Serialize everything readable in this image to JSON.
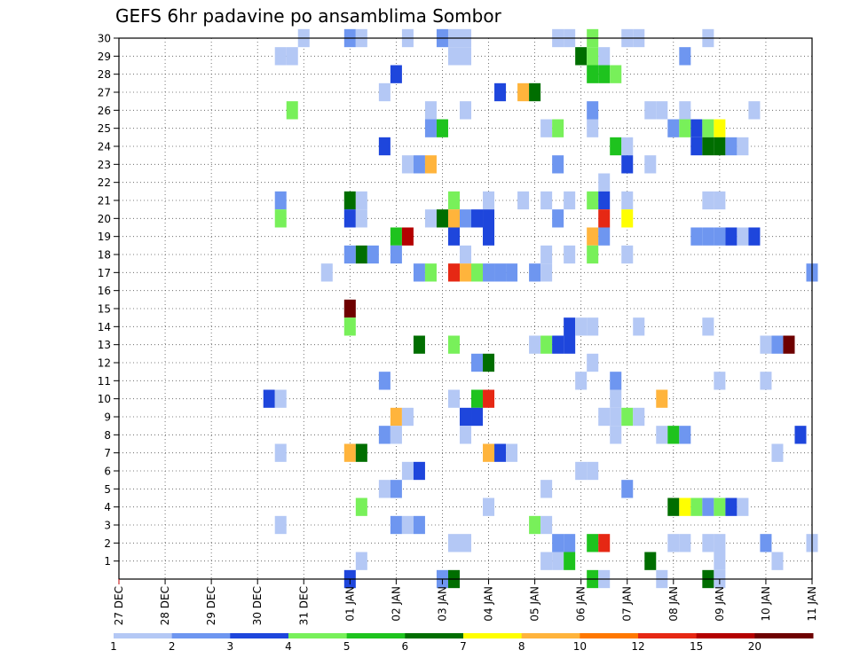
{
  "chart_data": {
    "type": "heatmap",
    "title": "GEFS 6hr padavine po ansamblima Sombor",
    "xlabel": "",
    "ylabel": "",
    "x_unit": "6-hour step from 27 DEC 00Z",
    "xlim": [
      0,
      60
    ],
    "ylim": [
      0,
      30
    ],
    "x_ticks": [
      {
        "x": 0,
        "label": "27 DEC"
      },
      {
        "x": 4,
        "label": "28 DEC"
      },
      {
        "x": 8,
        "label": "29 DEC"
      },
      {
        "x": 12,
        "label": "30 DEC"
      },
      {
        "x": 16,
        "label": "31 DEC"
      },
      {
        "x": 20,
        "label": "01 JAN"
      },
      {
        "x": 24,
        "label": "02 JAN"
      },
      {
        "x": 28,
        "label": "03 JAN"
      },
      {
        "x": 32,
        "label": "04 JAN"
      },
      {
        "x": 36,
        "label": "05 JAN"
      },
      {
        "x": 40,
        "label": "06 JAN"
      },
      {
        "x": 44,
        "label": "07 JAN"
      },
      {
        "x": 48,
        "label": "08 JAN"
      },
      {
        "x": 52,
        "label": "09 JAN"
      },
      {
        "x": 56,
        "label": "10 JAN"
      },
      {
        "x": 60,
        "label": "11 JAN"
      }
    ],
    "y_ticks": [
      "1",
      "2",
      "3",
      "4",
      "5",
      "6",
      "7",
      "8",
      "9",
      "10",
      "11",
      "12",
      "13",
      "14",
      "15",
      "16",
      "17",
      "18",
      "19",
      "20",
      "21",
      "22",
      "23",
      "24",
      "25",
      "26",
      "27",
      "28",
      "29",
      "30"
    ],
    "grid": true,
    "legend": {
      "position": "bottom",
      "bins": [
        {
          "color": "#b4c8f5",
          "label": "1"
        },
        {
          "color": "#6e96f0",
          "label": "2"
        },
        {
          "color": "#1e46dc",
          "label": "3"
        },
        {
          "color": "#78f05a",
          "label": "4"
        },
        {
          "color": "#1ec31e",
          "label": "5"
        },
        {
          "color": "#006e00",
          "label": "6"
        },
        {
          "color": "#ffff00",
          "label": "7"
        },
        {
          "color": "#ffb43c",
          "label": "8"
        },
        {
          "color": "#ff7800",
          "label": "10"
        },
        {
          "color": "#e62814",
          "label": "12"
        },
        {
          "color": "#b40000",
          "label": "15"
        },
        {
          "color": "#6e0000",
          "label": "20"
        }
      ]
    },
    "cells": [
      [
        16,
        30,
        1
      ],
      [
        20,
        30,
        2
      ],
      [
        21,
        30,
        1
      ],
      [
        25,
        30,
        1
      ],
      [
        28,
        30,
        2
      ],
      [
        29,
        30,
        1
      ],
      [
        30,
        30,
        1
      ],
      [
        38,
        30,
        1
      ],
      [
        39,
        30,
        1
      ],
      [
        41,
        30,
        4
      ],
      [
        44,
        30,
        1
      ],
      [
        45,
        30,
        1
      ],
      [
        51,
        30,
        1
      ],
      [
        14,
        29,
        1
      ],
      [
        15,
        29,
        1
      ],
      [
        29,
        29,
        1
      ],
      [
        30,
        29,
        1
      ],
      [
        40,
        29,
        6
      ],
      [
        41,
        29,
        4
      ],
      [
        42,
        29,
        1
      ],
      [
        49,
        29,
        2
      ],
      [
        24,
        28,
        3
      ],
      [
        41,
        28,
        5
      ],
      [
        42,
        28,
        5
      ],
      [
        43,
        28,
        4
      ],
      [
        23,
        27,
        1
      ],
      [
        33,
        27,
        3
      ],
      [
        35,
        27,
        8
      ],
      [
        36,
        27,
        6
      ],
      [
        15,
        26,
        4
      ],
      [
        27,
        26,
        1
      ],
      [
        30,
        26,
        1
      ],
      [
        41,
        26,
        2
      ],
      [
        46,
        26,
        1
      ],
      [
        47,
        26,
        1
      ],
      [
        49,
        26,
        1
      ],
      [
        55,
        26,
        1
      ],
      [
        27,
        25,
        2
      ],
      [
        28,
        25,
        5
      ],
      [
        37,
        25,
        1
      ],
      [
        38,
        25,
        4
      ],
      [
        41,
        25,
        1
      ],
      [
        48,
        25,
        2
      ],
      [
        49,
        25,
        4
      ],
      [
        50,
        25,
        3
      ],
      [
        51,
        25,
        4
      ],
      [
        52,
        25,
        7
      ],
      [
        23,
        24,
        3
      ],
      [
        43,
        24,
        5
      ],
      [
        44,
        24,
        1
      ],
      [
        50,
        24,
        3
      ],
      [
        51,
        24,
        6
      ],
      [
        52,
        24,
        6
      ],
      [
        53,
        24,
        2
      ],
      [
        54,
        24,
        1
      ],
      [
        25,
        23,
        1
      ],
      [
        26,
        23,
        2
      ],
      [
        27,
        23,
        8
      ],
      [
        38,
        23,
        2
      ],
      [
        44,
        23,
        3
      ],
      [
        46,
        23,
        1
      ],
      [
        42,
        22,
        1
      ],
      [
        14,
        21,
        2
      ],
      [
        20,
        21,
        6
      ],
      [
        21,
        21,
        1
      ],
      [
        29,
        21,
        4
      ],
      [
        32,
        21,
        1
      ],
      [
        35,
        21,
        1
      ],
      [
        37,
        21,
        1
      ],
      [
        39,
        21,
        1
      ],
      [
        41,
        21,
        4
      ],
      [
        42,
        21,
        3
      ],
      [
        44,
        21,
        1
      ],
      [
        51,
        21,
        1
      ],
      [
        52,
        21,
        1
      ],
      [
        14,
        20,
        4
      ],
      [
        20,
        20,
        3
      ],
      [
        21,
        20,
        1
      ],
      [
        27,
        20,
        1
      ],
      [
        28,
        20,
        6
      ],
      [
        29,
        20,
        8
      ],
      [
        30,
        20,
        2
      ],
      [
        31,
        20,
        3
      ],
      [
        32,
        20,
        3
      ],
      [
        38,
        20,
        2
      ],
      [
        42,
        20,
        10
      ],
      [
        44,
        20,
        7
      ],
      [
        24,
        19,
        5
      ],
      [
        25,
        19,
        11
      ],
      [
        29,
        19,
        3
      ],
      [
        32,
        19,
        3
      ],
      [
        41,
        19,
        8
      ],
      [
        42,
        19,
        2
      ],
      [
        50,
        19,
        2
      ],
      [
        51,
        19,
        2
      ],
      [
        52,
        19,
        2
      ],
      [
        53,
        19,
        3
      ],
      [
        54,
        19,
        1
      ],
      [
        55,
        19,
        3
      ],
      [
        20,
        18,
        2
      ],
      [
        21,
        18,
        6
      ],
      [
        22,
        18,
        2
      ],
      [
        24,
        18,
        2
      ],
      [
        30,
        18,
        1
      ],
      [
        37,
        18,
        1
      ],
      [
        39,
        18,
        1
      ],
      [
        41,
        18,
        4
      ],
      [
        44,
        18,
        1
      ],
      [
        18,
        17,
        1
      ],
      [
        26,
        17,
        2
      ],
      [
        27,
        17,
        4
      ],
      [
        29,
        17,
        10
      ],
      [
        30,
        17,
        8
      ],
      [
        31,
        17,
        4
      ],
      [
        32,
        17,
        2
      ],
      [
        33,
        17,
        2
      ],
      [
        34,
        17,
        2
      ],
      [
        36,
        17,
        2
      ],
      [
        37,
        17,
        1
      ],
      [
        60,
        17,
        2
      ],
      [
        20,
        15,
        12
      ],
      [
        20,
        14,
        4
      ],
      [
        39,
        14,
        3
      ],
      [
        40,
        14,
        1
      ],
      [
        41,
        14,
        1
      ],
      [
        45,
        14,
        1
      ],
      [
        51,
        14,
        1
      ],
      [
        26,
        13,
        6
      ],
      [
        29,
        13,
        4
      ],
      [
        36,
        13,
        1
      ],
      [
        37,
        13,
        4
      ],
      [
        38,
        13,
        3
      ],
      [
        39,
        13,
        3
      ],
      [
        56,
        13,
        1
      ],
      [
        57,
        13,
        2
      ],
      [
        58,
        13,
        12
      ],
      [
        31,
        12,
        2
      ],
      [
        32,
        12,
        6
      ],
      [
        41,
        12,
        1
      ],
      [
        23,
        11,
        2
      ],
      [
        40,
        11,
        1
      ],
      [
        43,
        11,
        2
      ],
      [
        52,
        11,
        1
      ],
      [
        56,
        11,
        1
      ],
      [
        13,
        10,
        3
      ],
      [
        14,
        10,
        1
      ],
      [
        29,
        10,
        1
      ],
      [
        31,
        10,
        5
      ],
      [
        32,
        10,
        10
      ],
      [
        43,
        10,
        1
      ],
      [
        47,
        10,
        8
      ],
      [
        24,
        9,
        8
      ],
      [
        25,
        9,
        1
      ],
      [
        30,
        9,
        3
      ],
      [
        31,
        9,
        3
      ],
      [
        42,
        9,
        1
      ],
      [
        43,
        9,
        1
      ],
      [
        44,
        9,
        4
      ],
      [
        45,
        9,
        1
      ],
      [
        23,
        8,
        2
      ],
      [
        24,
        8,
        1
      ],
      [
        30,
        8,
        1
      ],
      [
        43,
        8,
        1
      ],
      [
        47,
        8,
        1
      ],
      [
        48,
        8,
        5
      ],
      [
        49,
        8,
        2
      ],
      [
        59,
        8,
        3
      ],
      [
        14,
        7,
        1
      ],
      [
        20,
        7,
        8
      ],
      [
        21,
        7,
        6
      ],
      [
        32,
        7,
        8
      ],
      [
        33,
        7,
        3
      ],
      [
        34,
        7,
        1
      ],
      [
        57,
        7,
        1
      ],
      [
        25,
        6,
        1
      ],
      [
        26,
        6,
        3
      ],
      [
        40,
        6,
        1
      ],
      [
        41,
        6,
        1
      ],
      [
        23,
        5,
        1
      ],
      [
        24,
        5,
        2
      ],
      [
        37,
        5,
        1
      ],
      [
        44,
        5,
        2
      ],
      [
        21,
        4,
        4
      ],
      [
        32,
        4,
        1
      ],
      [
        48,
        4,
        6
      ],
      [
        49,
        4,
        7
      ],
      [
        50,
        4,
        4
      ],
      [
        51,
        4,
        2
      ],
      [
        52,
        4,
        4
      ],
      [
        53,
        4,
        3
      ],
      [
        54,
        4,
        1
      ],
      [
        14,
        3,
        1
      ],
      [
        24,
        3,
        2
      ],
      [
        25,
        3,
        1
      ],
      [
        26,
        3,
        2
      ],
      [
        36,
        3,
        4
      ],
      [
        37,
        3,
        1
      ],
      [
        29,
        2,
        1
      ],
      [
        30,
        2,
        1
      ],
      [
        38,
        2,
        2
      ],
      [
        39,
        2,
        2
      ],
      [
        41,
        2,
        5
      ],
      [
        42,
        2,
        10
      ],
      [
        48,
        2,
        1
      ],
      [
        49,
        2,
        1
      ],
      [
        51,
        2,
        1
      ],
      [
        52,
        2,
        1
      ],
      [
        56,
        2,
        2
      ],
      [
        60,
        2,
        1
      ],
      [
        21,
        1,
        1
      ],
      [
        37,
        1,
        1
      ],
      [
        38,
        1,
        1
      ],
      [
        39,
        1,
        5
      ],
      [
        46,
        1,
        6
      ],
      [
        52,
        1,
        1
      ],
      [
        57,
        1,
        1
      ],
      [
        20,
        0,
        3
      ],
      [
        28,
        0,
        2
      ],
      [
        29,
        0,
        6
      ],
      [
        41,
        0,
        5
      ],
      [
        42,
        0,
        1
      ],
      [
        47,
        0,
        1
      ],
      [
        51,
        0,
        6
      ],
      [
        52,
        0,
        1
      ]
    ]
  }
}
